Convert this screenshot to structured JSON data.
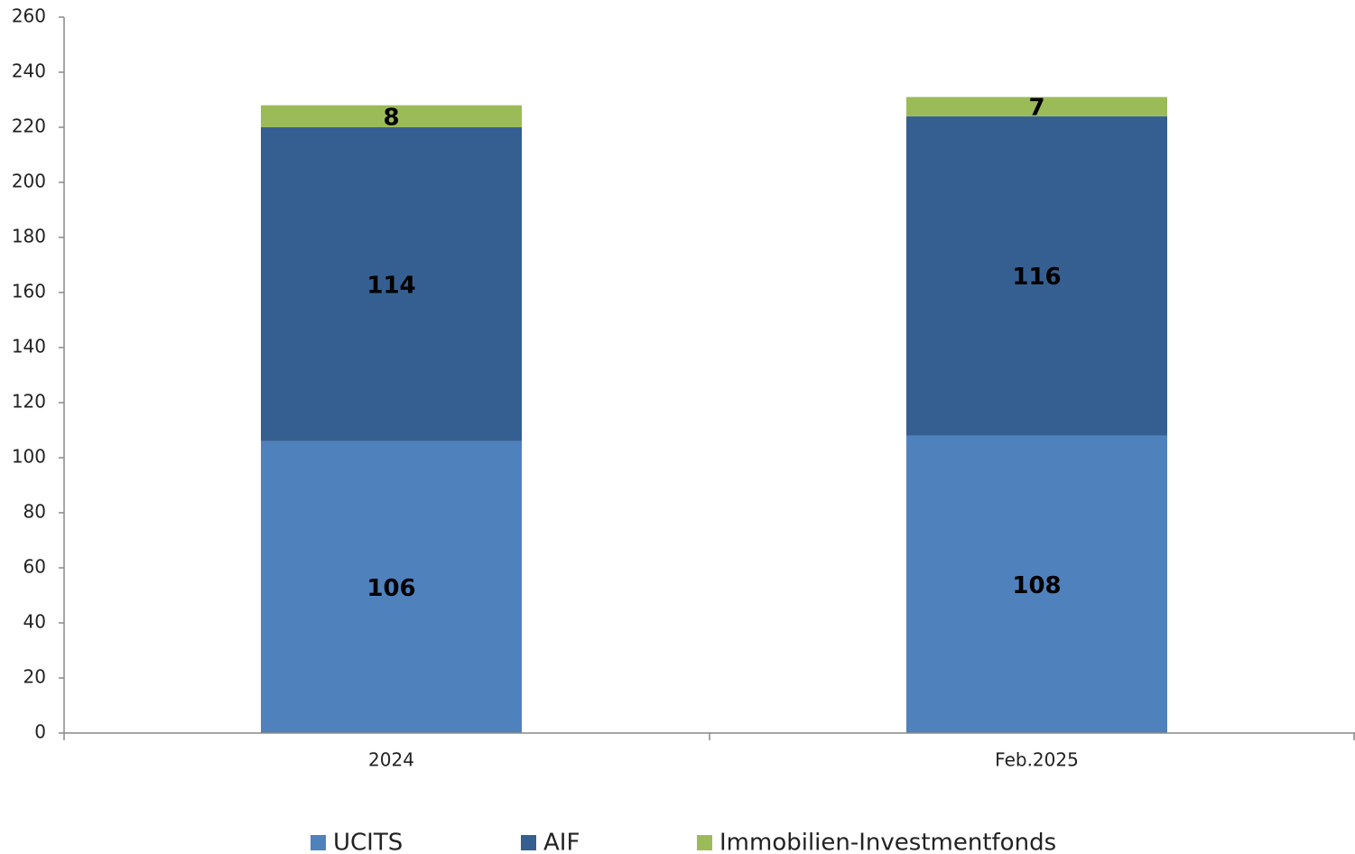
{
  "chart_data": {
    "type": "stacked_bar",
    "categories": [
      "2024",
      "Feb.2025"
    ],
    "series": [
      {
        "name": "UCITS",
        "color": "#4f81bd",
        "values": [
          106,
          108
        ]
      },
      {
        "name": "AIF",
        "color": "#355f91",
        "values": [
          114,
          116
        ]
      },
      {
        "name": "Immobilien-Investmentfonds",
        "color": "#9bbb59",
        "values": [
          8,
          7
        ]
      }
    ],
    "ylim": [
      0,
      260
    ],
    "yticks": [
      0,
      20,
      40,
      60,
      80,
      100,
      120,
      140,
      160,
      180,
      200,
      220,
      240,
      260
    ],
    "legend": "bottom"
  }
}
